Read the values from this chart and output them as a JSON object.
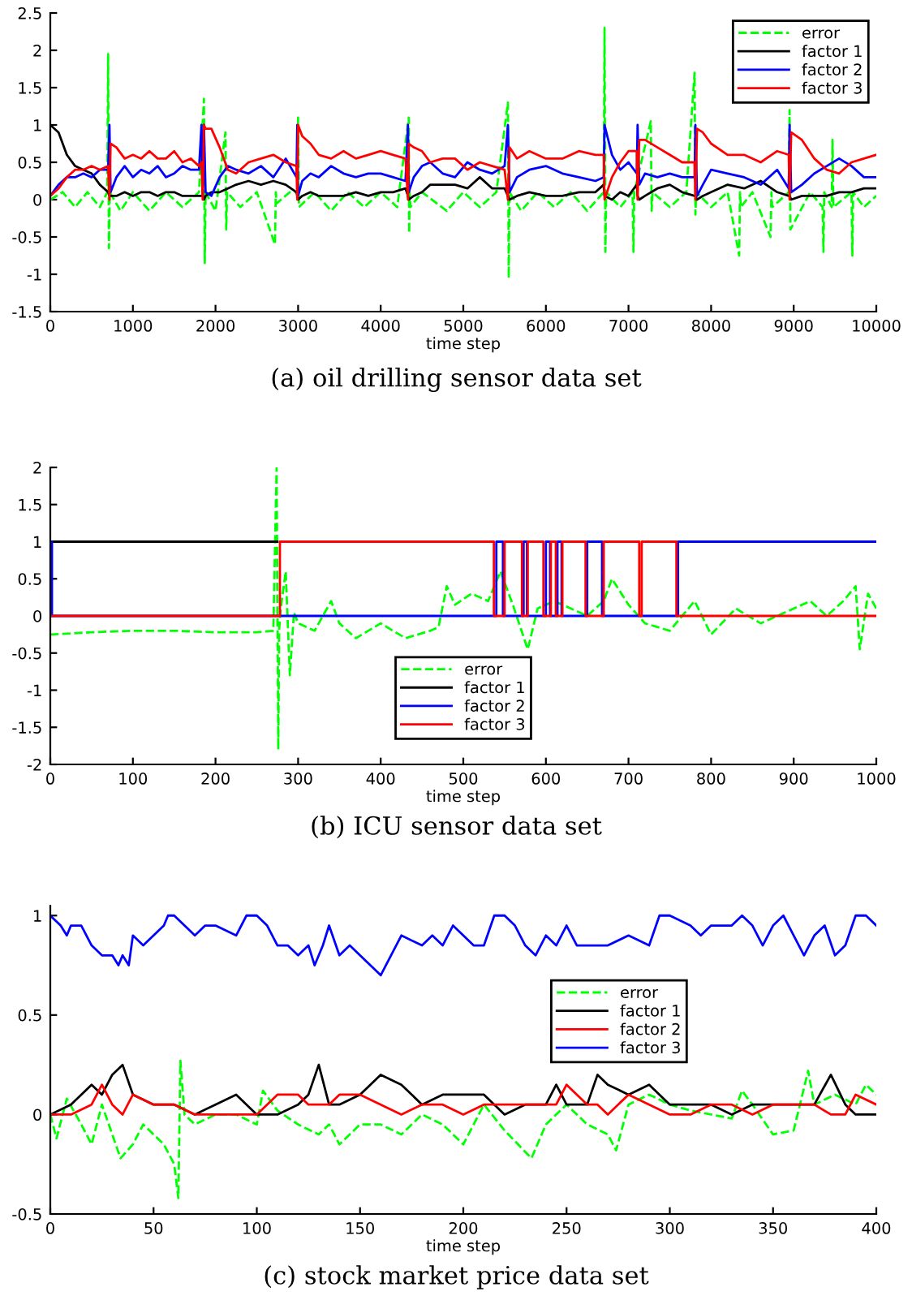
{
  "chart_data": [
    {
      "type": "line",
      "title": "(a) oil drilling sensor data set",
      "xlabel": "time step",
      "xlim": [
        0,
        10000
      ],
      "xticks": [
        0,
        1000,
        2000,
        3000,
        4000,
        5000,
        6000,
        7000,
        8000,
        9000,
        10000
      ],
      "ylim": [
        -1.5,
        2.5
      ],
      "yticks": [
        -1.5,
        -1,
        -0.5,
        0,
        0.5,
        1,
        1.5,
        2,
        2.5
      ],
      "legend": "top right",
      "grid": false,
      "series": [
        {
          "name": "error",
          "color": "#00ff00",
          "line_style": "dashed",
          "x": [
            0,
            150,
            300,
            450,
            600,
            690,
            700,
            710,
            720,
            850,
            1000,
            1200,
            1400,
            1600,
            1800,
            1860,
            1870,
            1880,
            2000,
            2120,
            2130,
            2140,
            2300,
            2500,
            2720,
            2730,
            2740,
            2900,
            2990,
            3000,
            3010,
            3200,
            3400,
            3600,
            3800,
            4000,
            4200,
            4340,
            4345,
            4350,
            4360,
            4500,
            4800,
            5000,
            5200,
            5400,
            5540,
            5550,
            5560,
            5700,
            5900,
            6100,
            6300,
            6500,
            6700,
            6710,
            6720,
            6730,
            6900,
            7050,
            7060,
            7070,
            7270,
            7280,
            7290,
            7500,
            7700,
            7800,
            7810,
            7820,
            8000,
            8200,
            8340,
            8350,
            8360,
            8500,
            8720,
            8730,
            8740,
            8940,
            8950,
            8960,
            9200,
            9350,
            9360,
            9370,
            9460,
            9470,
            9480,
            9700,
            9710,
            9720,
            9850,
            10000
          ],
          "values": [
            0,
            0.1,
            -0.1,
            0.1,
            -0.1,
            0.1,
            1.95,
            -0.65,
            0.1,
            -0.15,
            0.1,
            -0.15,
            0.1,
            -0.1,
            0.1,
            1.35,
            -0.85,
            0.1,
            -0.15,
            0.9,
            -0.4,
            0.1,
            -0.1,
            0.1,
            -0.6,
            0.1,
            -0.05,
            0.1,
            0.1,
            1.1,
            -0.1,
            0.1,
            -0.15,
            0.1,
            -0.1,
            0.1,
            -0.1,
            1.1,
            -0.45,
            0.1,
            -0.1,
            0.1,
            -0.15,
            0.1,
            -0.1,
            0.1,
            1.3,
            -1.05,
            0.1,
            -0.15,
            0.1,
            -0.1,
            0.1,
            -0.15,
            0.1,
            2.3,
            -0.7,
            0.1,
            -0.1,
            0.1,
            -0.7,
            0.1,
            1.05,
            -0.15,
            0.1,
            -0.1,
            0.1,
            1.7,
            -0.2,
            0.1,
            -0.1,
            0.1,
            -0.75,
            0.1,
            -0.1,
            0.1,
            -0.5,
            0.1,
            -0.1,
            0.1,
            1.2,
            -0.4,
            0.1,
            -0.1,
            -0.7,
            0.1,
            -0.1,
            0.8,
            -0.1,
            0.1,
            -0.75,
            0.1,
            -0.1,
            0.05
          ]
        },
        {
          "name": "factor 1",
          "color": "#000000",
          "line_style": "solid",
          "x": [
            0,
            100,
            200,
            300,
            400,
            500,
            600,
            700,
            716,
            730,
            800,
            900,
            1000,
            1100,
            1200,
            1300,
            1400,
            1500,
            1600,
            1700,
            1800,
            1830,
            1845,
            1860,
            1880,
            1950,
            2050,
            2150,
            2250,
            2400,
            2550,
            2700,
            2850,
            2980,
            2990,
            3000,
            3050,
            3150,
            3250,
            3400,
            3550,
            3700,
            3850,
            4000,
            4150,
            4300,
            4330,
            4340,
            4400,
            4500,
            4600,
            4750,
            4900,
            5050,
            5200,
            5350,
            5500,
            5540,
            5560,
            5650,
            5800,
            6000,
            6200,
            6400,
            6600,
            6700,
            6710,
            6800,
            6900,
            7000,
            7100,
            7110,
            7130,
            7200,
            7350,
            7500,
            7650,
            7800,
            7810,
            7830,
            7900,
            8000,
            8200,
            8400,
            8600,
            8800,
            8940,
            8950,
            8970,
            9100,
            9250,
            9400,
            9550,
            9700,
            9850,
            10000
          ],
          "values": [
            1,
            0.9,
            0.6,
            0.45,
            0.4,
            0.35,
            0.2,
            0.1,
            0.05,
            0.05,
            0.05,
            0.1,
            0.05,
            0.1,
            0.1,
            0.05,
            0.1,
            0.1,
            0.05,
            0.05,
            0.05,
            0.05,
            0.05,
            0,
            0.05,
            0.1,
            0.1,
            0.15,
            0.2,
            0.25,
            0.2,
            0.25,
            0.2,
            0.1,
            0.05,
            0,
            0.05,
            0.1,
            0.05,
            0.05,
            0.05,
            0.1,
            0.05,
            0.1,
            0.1,
            0.15,
            0.05,
            0,
            0.05,
            0.1,
            0.2,
            0.2,
            0.2,
            0.15,
            0.3,
            0.15,
            0.15,
            0.05,
            0,
            0.05,
            0.1,
            0.05,
            0.05,
            0.1,
            0.1,
            0.2,
            0.05,
            0,
            0.1,
            0.05,
            0.2,
            0.05,
            0,
            0.05,
            0.15,
            0.2,
            0.1,
            0.05,
            0.05,
            0,
            0.05,
            0.1,
            0.2,
            0.15,
            0.25,
            0.1,
            0.05,
            0.05,
            0,
            0.05,
            0.05,
            0.05,
            0.1,
            0.1,
            0.15,
            0.15
          ]
        },
        {
          "name": "factor 2",
          "color": "#0000ff",
          "line_style": "solid",
          "x": [
            0,
            100,
            200,
            300,
            400,
            500,
            600,
            700,
            716,
            730,
            800,
            900,
            1000,
            1100,
            1200,
            1300,
            1400,
            1500,
            1600,
            1700,
            1800,
            1830,
            1845,
            1860,
            1880,
            1950,
            2050,
            2150,
            2250,
            2400,
            2550,
            2700,
            2850,
            2980,
            2990,
            3000,
            3050,
            3150,
            3250,
            3400,
            3550,
            3700,
            3850,
            4000,
            4150,
            4300,
            4330,
            4340,
            4400,
            4500,
            4600,
            4750,
            4900,
            5050,
            5200,
            5350,
            5500,
            5540,
            5560,
            5650,
            5800,
            6000,
            6200,
            6400,
            6600,
            6700,
            6710,
            6800,
            6900,
            7000,
            7100,
            7110,
            7130,
            7200,
            7350,
            7500,
            7650,
            7800,
            7810,
            7830,
            7900,
            8000,
            8200,
            8400,
            8600,
            8800,
            8940,
            8950,
            8970,
            9100,
            9250,
            9400,
            9550,
            9700,
            9850,
            10000
          ],
          "values": [
            0.05,
            0.2,
            0.3,
            0.3,
            0.35,
            0.3,
            0.4,
            0.4,
            1,
            0.1,
            0.3,
            0.45,
            0.3,
            0.4,
            0.35,
            0.45,
            0.3,
            0.35,
            0.45,
            0.4,
            0.4,
            1,
            0.05,
            1,
            0.1,
            0.05,
            0.3,
            0.45,
            0.4,
            0.35,
            0.45,
            0.3,
            0.55,
            0.3,
            1,
            0.05,
            0.25,
            0.35,
            0.3,
            0.45,
            0.35,
            0.3,
            0.35,
            0.35,
            0.3,
            0.25,
            1,
            0.1,
            0.3,
            0.45,
            0.5,
            0.35,
            0.3,
            0.5,
            0.4,
            0.35,
            0.45,
            1,
            0.1,
            0.3,
            0.4,
            0.45,
            0.35,
            0.3,
            0.25,
            0.3,
            1,
            0.6,
            0.4,
            0.5,
            0.35,
            1,
            0.2,
            0.35,
            0.3,
            0.35,
            0.3,
            0.3,
            1,
            0.05,
            0.2,
            0.4,
            0.35,
            0.3,
            0.2,
            0.4,
            0.15,
            1,
            0.1,
            0.2,
            0.35,
            0.45,
            0.55,
            0.45,
            0.3,
            0.3
          ]
        },
        {
          "name": "factor 3",
          "color": "#ff0000",
          "line_style": "solid",
          "x": [
            0,
            100,
            200,
            300,
            400,
            500,
            600,
            700,
            716,
            730,
            800,
            900,
            1000,
            1100,
            1200,
            1300,
            1400,
            1500,
            1600,
            1700,
            1800,
            1830,
            1845,
            1860,
            1880,
            1950,
            2050,
            2150,
            2250,
            2400,
            2550,
            2700,
            2850,
            2980,
            2990,
            3000,
            3050,
            3150,
            3250,
            3400,
            3550,
            3700,
            3850,
            4000,
            4150,
            4300,
            4330,
            4340,
            4400,
            4500,
            4600,
            4750,
            4900,
            5050,
            5200,
            5350,
            5500,
            5540,
            5560,
            5650,
            5800,
            6000,
            6200,
            6400,
            6600,
            6700,
            6710,
            6800,
            6900,
            7000,
            7100,
            7110,
            7130,
            7200,
            7350,
            7500,
            7650,
            7800,
            7810,
            7830,
            7900,
            8000,
            8200,
            8400,
            8600,
            8800,
            8940,
            8950,
            8970,
            9100,
            9250,
            9400,
            9550,
            9700,
            9850,
            10000
          ],
          "values": [
            0.05,
            0.15,
            0.3,
            0.4,
            0.4,
            0.45,
            0.4,
            0.45,
            0,
            0.75,
            0.7,
            0.55,
            0.6,
            0.55,
            0.65,
            0.55,
            0.55,
            0.65,
            0.5,
            0.55,
            0.45,
            0.5,
            0,
            1,
            0.95,
            0.95,
            0.7,
            0.4,
            0.35,
            0.5,
            0.55,
            0.6,
            0.5,
            0.45,
            0,
            1,
            0.85,
            0.75,
            0.6,
            0.55,
            0.65,
            0.55,
            0.6,
            0.65,
            0.6,
            0.55,
            0,
            0.75,
            0.7,
            0.65,
            0.5,
            0.55,
            0.55,
            0.4,
            0.5,
            0.45,
            0.4,
            0,
            0.7,
            0.55,
            0.65,
            0.55,
            0.55,
            0.65,
            0.6,
            0.6,
            0,
            0.3,
            0.5,
            0.65,
            0.65,
            0,
            0.8,
            0.8,
            0.7,
            0.6,
            0.5,
            0.5,
            0,
            0.95,
            0.9,
            0.75,
            0.6,
            0.6,
            0.5,
            0.65,
            0.6,
            0,
            0.9,
            0.8,
            0.55,
            0.4,
            0.35,
            0.5,
            0.55,
            0.6
          ]
        }
      ]
    },
    {
      "type": "line",
      "title": "(b) ICU sensor data set",
      "xlabel": "time step",
      "xlim": [
        0,
        1000
      ],
      "xticks": [
        0,
        100,
        200,
        300,
        400,
        500,
        600,
        700,
        800,
        900,
        1000
      ],
      "ylim": [
        -2,
        2
      ],
      "yticks": [
        -2,
        -1.5,
        -1,
        -0.5,
        0,
        0.5,
        1,
        1.5,
        2
      ],
      "legend": "bottom",
      "grid": false,
      "series": [
        {
          "name": "error",
          "color": "#00ff00",
          "line_style": "dashed",
          "x": [
            0,
            50,
            100,
            150,
            200,
            250,
            270,
            274,
            276,
            277,
            279,
            285,
            290,
            295,
            300,
            320,
            340,
            350,
            370,
            400,
            430,
            460,
            470,
            480,
            490,
            510,
            530,
            545,
            560,
            578,
            590,
            610,
            630,
            650,
            670,
            680,
            700,
            720,
            750,
            780,
            800,
            830,
            860,
            890,
            920,
            940,
            960,
            975,
            980,
            990,
            1000
          ],
          "values": [
            -0.25,
            -0.22,
            -0.2,
            -0.2,
            -0.22,
            -0.22,
            -0.2,
            2,
            -1.8,
            -0.2,
            0.1,
            0.6,
            -0.8,
            0.05,
            -0.1,
            -0.2,
            0.2,
            -0.1,
            -0.3,
            -0.1,
            -0.3,
            -0.2,
            -0.15,
            0.4,
            0.15,
            0.3,
            0.2,
            0.6,
            0.15,
            -0.45,
            0.1,
            0.2,
            0.1,
            0,
            0.2,
            0.5,
            0.15,
            -0.1,
            -0.2,
            0.2,
            -0.25,
            0.1,
            -0.1,
            0.05,
            0.2,
            0,
            0.2,
            0.4,
            -0.45,
            0.3,
            0.1
          ]
        },
        {
          "name": "factor 1",
          "color": "#000000",
          "line_style": "solid",
          "x": [
            0,
            275
          ],
          "values": [
            1,
            1
          ]
        },
        {
          "name": "factor 2",
          "color": "#0000ff",
          "line_style": "solid",
          "x": [
            0,
            2,
            2,
            2,
            540,
            540,
            548,
            548,
            573,
            573,
            577,
            577,
            600,
            600,
            605,
            605,
            614,
            614,
            619,
            619,
            650,
            650,
            668,
            668,
            760,
            760,
            1000
          ],
          "values": [
            0,
            0,
            1,
            0,
            0,
            1,
            1,
            0,
            0,
            1,
            1,
            0,
            0,
            1,
            1,
            0,
            0,
            1,
            1,
            0,
            0,
            1,
            1,
            0,
            0,
            1,
            1
          ]
        },
        {
          "name": "factor 3",
          "color": "#ff0000",
          "line_style": "solid",
          "x": [
            0,
            278,
            278,
            537,
            537,
            550,
            550,
            571,
            571,
            578,
            578,
            597,
            597,
            606,
            606,
            612,
            612,
            620,
            620,
            648,
            648,
            670,
            670,
            713,
            713,
            716,
            716,
            758,
            758,
            1000
          ],
          "values": [
            0,
            0,
            1,
            1,
            0,
            0,
            1,
            1,
            0,
            0,
            1,
            1,
            0,
            0,
            1,
            1,
            0,
            0,
            1,
            1,
            0,
            0,
            1,
            1,
            0,
            0,
            1,
            1,
            0,
            0
          ]
        }
      ]
    },
    {
      "type": "line",
      "title": "(c) stock market price data set",
      "xlabel": "time step",
      "xlim": [
        0,
        400
      ],
      "xticks": [
        0,
        50,
        100,
        150,
        200,
        250,
        300,
        350,
        400
      ],
      "ylim": [
        -0.5,
        1.05
      ],
      "yticks": [
        -0.5,
        0,
        0.5,
        1
      ],
      "legend": "right",
      "grid": false,
      "series": [
        {
          "name": "error",
          "color": "#00ff00",
          "line_style": "dashed",
          "x": [
            0,
            3,
            8,
            15,
            20,
            25,
            30,
            34,
            40,
            45,
            50,
            55,
            60,
            62,
            63,
            65,
            70,
            80,
            90,
            100,
            103,
            110,
            120,
            130,
            135,
            140,
            150,
            160,
            170,
            180,
            190,
            200,
            210,
            220,
            233,
            240,
            250,
            260,
            270,
            274,
            280,
            290,
            300,
            310,
            320,
            330,
            335,
            340,
            350,
            360,
            367,
            370,
            380,
            390,
            395,
            400
          ],
          "values": [
            0,
            -0.12,
            0.08,
            -0.05,
            -0.15,
            0.05,
            -0.1,
            -0.22,
            -0.15,
            -0.05,
            -0.1,
            -0.15,
            -0.25,
            -0.42,
            0.27,
            0,
            -0.05,
            0,
            0,
            -0.05,
            0.12,
            0.02,
            -0.05,
            -0.1,
            -0.05,
            -0.15,
            -0.05,
            -0.05,
            -0.1,
            0,
            -0.05,
            -0.15,
            0.05,
            -0.08,
            -0.22,
            -0.05,
            0.05,
            -0.05,
            -0.1,
            -0.18,
            0.05,
            0.1,
            0.05,
            0.02,
            0,
            -0.02,
            0.12,
            0.05,
            -0.1,
            -0.08,
            0.22,
            0.05,
            0.1,
            0.05,
            0.15,
            0.1
          ]
        },
        {
          "name": "factor 1",
          "color": "#000000",
          "line_style": "solid",
          "x": [
            0,
            10,
            20,
            25,
            30,
            35,
            40,
            50,
            60,
            70,
            80,
            90,
            100,
            110,
            120,
            125,
            130,
            135,
            140,
            150,
            160,
            170,
            180,
            190,
            200,
            210,
            220,
            230,
            240,
            245,
            250,
            260,
            265,
            270,
            280,
            290,
            300,
            310,
            320,
            330,
            340,
            350,
            360,
            370,
            378,
            385,
            390,
            400
          ],
          "values": [
            0,
            0.05,
            0.15,
            0.1,
            0.2,
            0.25,
            0.1,
            0.05,
            0.05,
            0,
            0.05,
            0.1,
            0,
            0,
            0.05,
            0.1,
            0.25,
            0.05,
            0.05,
            0.1,
            0.2,
            0.15,
            0.05,
            0.1,
            0.1,
            0.1,
            0,
            0.05,
            0.05,
            0.15,
            0.05,
            0.05,
            0.2,
            0.15,
            0.1,
            0.15,
            0.05,
            0.05,
            0.05,
            0,
            0.05,
            0.05,
            0.05,
            0.05,
            0.2,
            0.05,
            0,
            0
          ]
        },
        {
          "name": "factor 2",
          "color": "#ff0000",
          "line_style": "solid",
          "x": [
            0,
            10,
            20,
            25,
            30,
            35,
            40,
            50,
            60,
            70,
            80,
            90,
            100,
            110,
            120,
            125,
            130,
            135,
            140,
            150,
            160,
            170,
            180,
            190,
            200,
            210,
            220,
            230,
            240,
            245,
            250,
            260,
            265,
            270,
            280,
            290,
            300,
            310,
            320,
            330,
            340,
            350,
            360,
            370,
            378,
            385,
            390,
            400
          ],
          "values": [
            0,
            0,
            0.05,
            0.15,
            0.05,
            0,
            0.1,
            0.05,
            0.05,
            0,
            0,
            0,
            0,
            0.1,
            0.1,
            0.05,
            0.05,
            0.05,
            0.1,
            0.1,
            0.05,
            0,
            0.05,
            0.05,
            0,
            0.05,
            0.05,
            0.05,
            0.05,
            0.05,
            0.15,
            0.05,
            0.05,
            0,
            0.1,
            0.05,
            0,
            0,
            0.05,
            0.05,
            0,
            0.05,
            0.05,
            0.05,
            0,
            0,
            0.1,
            0.05
          ]
        },
        {
          "name": "factor 3",
          "color": "#0000ff",
          "line_style": "solid",
          "x": [
            0,
            5,
            8,
            10,
            15,
            20,
            25,
            30,
            33,
            35,
            38,
            40,
            45,
            50,
            55,
            57,
            60,
            70,
            75,
            80,
            90,
            95,
            100,
            105,
            110,
            115,
            120,
            125,
            128,
            132,
            135,
            140,
            145,
            150,
            155,
            160,
            165,
            170,
            180,
            185,
            190,
            195,
            200,
            205,
            210,
            215,
            220,
            225,
            230,
            235,
            240,
            245,
            250,
            255,
            260,
            270,
            280,
            290,
            295,
            300,
            310,
            315,
            320,
            330,
            335,
            340,
            345,
            350,
            355,
            360,
            365,
            370,
            375,
            380,
            385,
            390,
            395,
            400
          ],
          "values": [
            1,
            0.95,
            0.9,
            0.95,
            0.95,
            0.85,
            0.8,
            0.8,
            0.75,
            0.8,
            0.75,
            0.9,
            0.85,
            0.9,
            0.95,
            1,
            1,
            0.9,
            0.95,
            0.95,
            0.9,
            1,
            1,
            0.95,
            0.85,
            0.85,
            0.8,
            0.85,
            0.75,
            0.85,
            0.95,
            0.8,
            0.85,
            0.8,
            0.75,
            0.7,
            0.8,
            0.9,
            0.85,
            0.9,
            0.85,
            0.95,
            0.9,
            0.85,
            0.85,
            1,
            1,
            0.95,
            0.85,
            0.8,
            0.9,
            0.85,
            0.95,
            0.85,
            0.85,
            0.85,
            0.9,
            0.85,
            1,
            1,
            0.95,
            0.9,
            0.95,
            0.95,
            1,
            0.95,
            0.85,
            0.95,
            1,
            0.9,
            0.8,
            0.9,
            0.95,
            0.8,
            0.85,
            1,
            1,
            0.95
          ]
        }
      ]
    }
  ]
}
